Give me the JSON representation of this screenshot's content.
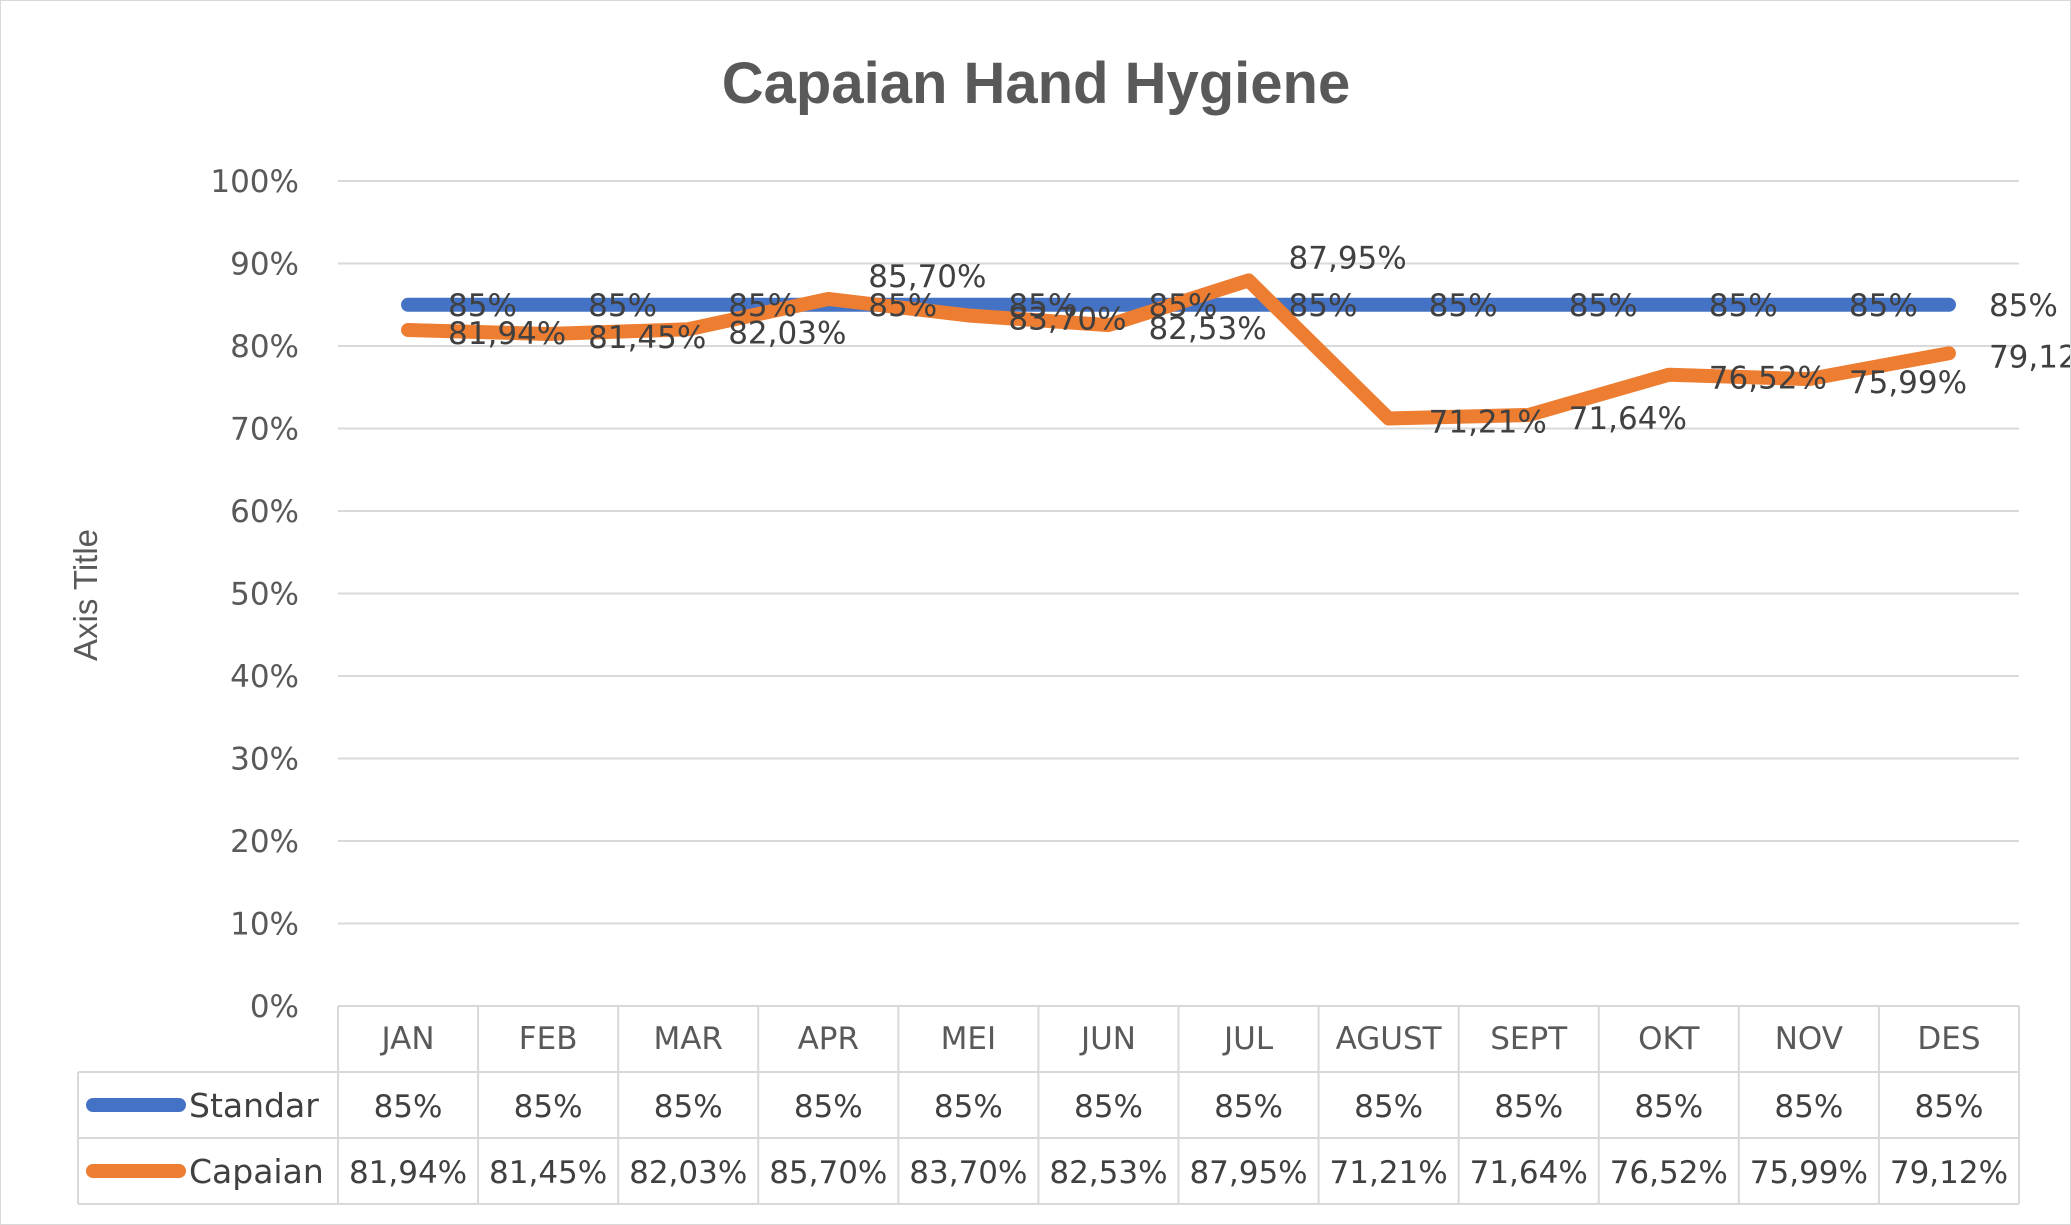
{
  "chart_data": {
    "type": "line",
    "title": "Capaian Hand Hygiene",
    "ylabel": "Axis Title",
    "xlabel": "",
    "ylim": [
      0,
      100
    ],
    "yticks": [
      "0%",
      "10%",
      "20%",
      "30%",
      "40%",
      "50%",
      "60%",
      "70%",
      "80%",
      "90%",
      "100%"
    ],
    "grid": true,
    "legend": "data-table",
    "categories": [
      "JAN",
      "FEB",
      "MAR",
      "APR",
      "MEI",
      "JUN",
      "JUL",
      "AGUST",
      "SEPT",
      "OKT",
      "NOV",
      "DES"
    ],
    "series": [
      {
        "name": "Standar",
        "color": "#4472c4",
        "values": [
          85,
          85,
          85,
          85,
          85,
          85,
          85,
          85,
          85,
          85,
          85,
          85
        ],
        "labels": [
          "85%",
          "85%",
          "85%",
          "85%",
          "85%",
          "85%",
          "85%",
          "85%",
          "85%",
          "85%",
          "85%",
          "85%"
        ]
      },
      {
        "name": "Capaian",
        "color": "#ed7d31",
        "values": [
          81.94,
          81.45,
          82.03,
          85.7,
          83.7,
          82.53,
          87.95,
          71.21,
          71.64,
          76.52,
          75.99,
          79.12
        ],
        "labels": [
          "81,94%",
          "81,45%",
          "82,03%",
          "85,70%",
          "83,70%",
          "82,53%",
          "87,95%",
          "71,21%",
          "71,64%",
          "76,52%",
          "75,99%",
          "79,12%"
        ]
      }
    ]
  }
}
